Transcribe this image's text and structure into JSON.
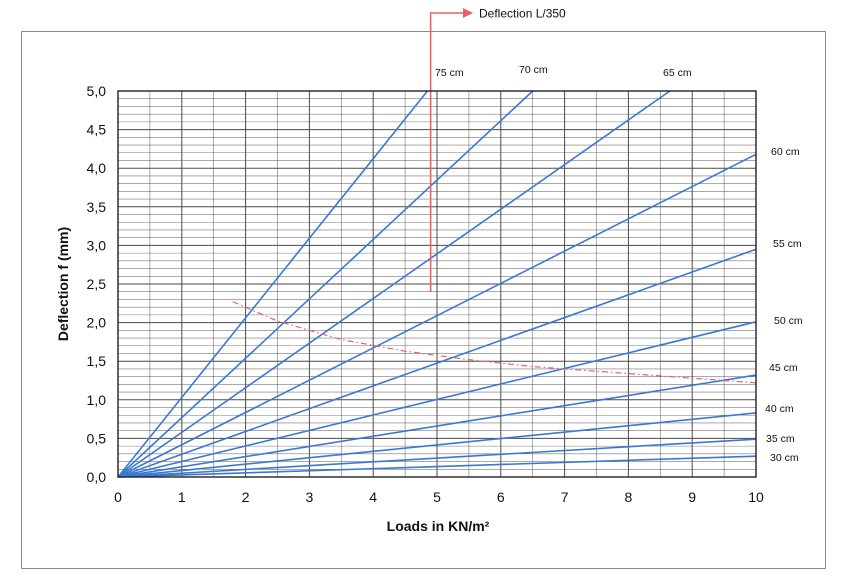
{
  "chart_data": {
    "type": "line",
    "xlabel": "Loads in KN/m²",
    "ylabel": "Deflection f (mm)",
    "xlim": [
      0,
      10
    ],
    "ylim": [
      0,
      5
    ],
    "x_ticks": [
      "0",
      "1",
      "2",
      "3",
      "4",
      "5",
      "6",
      "7",
      "8",
      "9",
      "10"
    ],
    "y_ticks": [
      "0,0",
      "0,5",
      "1,0",
      "1,5",
      "2,0",
      "2,5",
      "3,0",
      "3,5",
      "4,0",
      "4,5",
      "5,0"
    ],
    "grid": true,
    "series": [
      {
        "name": "30 cm",
        "x": [
          0,
          10
        ],
        "y": [
          0,
          0.27
        ]
      },
      {
        "name": "35 cm",
        "x": [
          0,
          10
        ],
        "y": [
          0,
          0.49
        ]
      },
      {
        "name": "40 cm",
        "x": [
          0,
          10
        ],
        "y": [
          0,
          0.83
        ]
      },
      {
        "name": "45 cm",
        "x": [
          0,
          10
        ],
        "y": [
          0,
          1.32
        ]
      },
      {
        "name": "50 cm",
        "x": [
          0,
          10
        ],
        "y": [
          0,
          2.01
        ]
      },
      {
        "name": "55 cm",
        "x": [
          0,
          10
        ],
        "y": [
          0,
          2.95
        ]
      },
      {
        "name": "60 cm",
        "x": [
          0,
          10
        ],
        "y": [
          0,
          4.18
        ]
      },
      {
        "name": "65 cm",
        "x": [
          0,
          8.65
        ],
        "y": [
          0,
          5.0
        ]
      },
      {
        "name": "70 cm",
        "x": [
          0,
          6.5
        ],
        "y": [
          0,
          5.0
        ]
      },
      {
        "name": "75 cm",
        "x": [
          0,
          4.85
        ],
        "y": [
          0,
          5.0
        ]
      }
    ],
    "reference": {
      "label": "Deflection L/350",
      "x": 4.9,
      "y_bottom": 2.4,
      "curve_x": [
        1.8,
        2.5,
        3.5,
        4.5,
        5.5,
        6.5,
        7.5,
        8.5,
        9.5,
        10.0
      ],
      "curve_y": [
        2.27,
        2.02,
        1.78,
        1.63,
        1.52,
        1.43,
        1.37,
        1.31,
        1.25,
        1.22
      ]
    },
    "colors": {
      "series": "#3b78d3",
      "reference": "#e8606c",
      "grid": "#4a4a4a"
    }
  }
}
